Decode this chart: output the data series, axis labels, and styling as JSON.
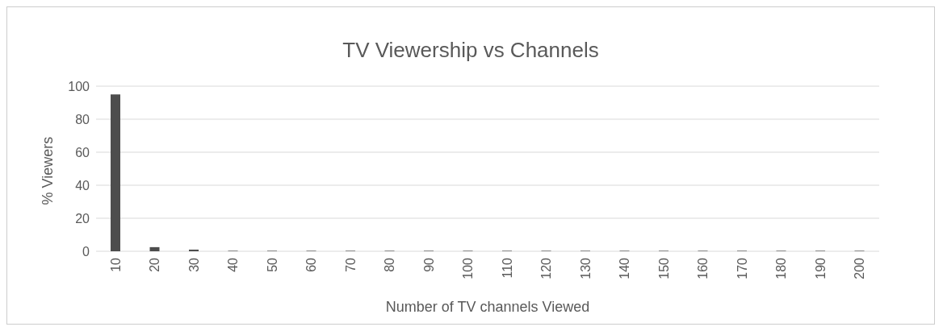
{
  "chart_data": {
    "type": "bar",
    "title": "TV Viewership vs Channels",
    "xlabel": "Number of TV channels Viewed",
    "ylabel": "% Viewers",
    "categories": [
      "10",
      "20",
      "30",
      "40",
      "50",
      "60",
      "70",
      "80",
      "90",
      "100",
      "110",
      "120",
      "130",
      "140",
      "150",
      "160",
      "170",
      "180",
      "190",
      "200"
    ],
    "values": [
      95,
      2.5,
      1,
      0.3,
      0.3,
      0.3,
      0.3,
      0.3,
      0.3,
      0.3,
      0.3,
      0.3,
      0.3,
      0.3,
      0.3,
      0.3,
      0.3,
      0.3,
      0.3,
      0.3
    ],
    "color": "#4d4d4d",
    "ylim": [
      0,
      100
    ],
    "yticks": [
      0,
      20,
      40,
      60,
      80,
      100
    ],
    "grid": "y"
  }
}
